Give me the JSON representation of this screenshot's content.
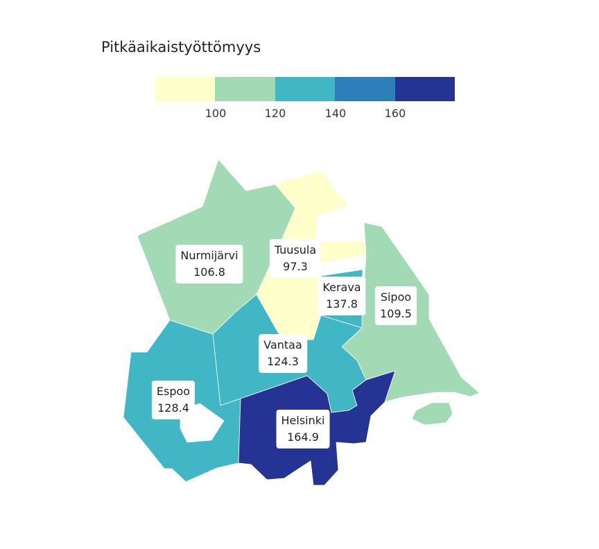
{
  "title": "Pitkäaikaistyöttömyys",
  "legend": {
    "colors": [
      "#ffffcc",
      "#a1dab4",
      "#41b6c4",
      "#2c7fb8",
      "#253494"
    ],
    "ticks": [
      "100",
      "120",
      "140",
      "160"
    ]
  },
  "chart_data": {
    "type": "choropleth",
    "title": "Pitkäaikaistyöttömyys",
    "breaks": [
      100,
      120,
      140,
      160
    ],
    "regions": [
      {
        "name": "Nurmijärvi",
        "value": "106.8"
      },
      {
        "name": "Tuusula",
        "value": "97.3"
      },
      {
        "name": "Kerava",
        "value": "137.8"
      },
      {
        "name": "Sipoo",
        "value": "109.5"
      },
      {
        "name": "Vantaa",
        "value": "124.3"
      },
      {
        "name": "Espoo",
        "value": "128.4"
      },
      {
        "name": "Helsinki",
        "value": "164.9"
      }
    ]
  }
}
